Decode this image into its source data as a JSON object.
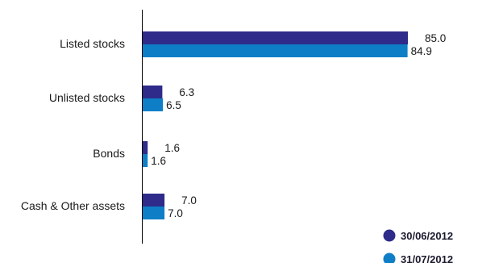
{
  "chart_data": {
    "type": "bar",
    "orientation": "horizontal",
    "categories": [
      "Listed stocks",
      "Unlisted stocks",
      "Bonds",
      "Cash & Other assets"
    ],
    "series": [
      {
        "name": "30/06/2012",
        "color": "#2e2b8a",
        "values": [
          85.0,
          6.3,
          1.6,
          7.0
        ],
        "labels": [
          "85.0",
          "6.3",
          "1.6",
          "7.0"
        ]
      },
      {
        "name": "31/07/2012",
        "color": "#0e7fc6",
        "values": [
          84.9,
          6.5,
          1.6,
          7.0
        ],
        "labels": [
          "84.9",
          "6.5",
          "1.6",
          "7.0"
        ]
      }
    ],
    "title": "",
    "xlabel": "",
    "ylabel": "",
    "xlim": [
      0,
      85.0
    ],
    "grid": false,
    "legend": "bottom-right"
  }
}
